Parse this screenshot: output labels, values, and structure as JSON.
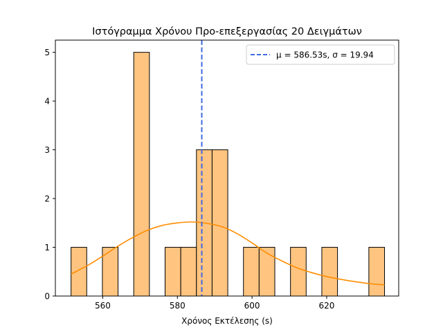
{
  "chart_data": {
    "type": "bar",
    "title": "Ιστόγραμμα Χρόνου Προ-επεξεργασίας 20 Δειγμάτων",
    "xlabel": "Χρόνος Εκτέλεσης (s)",
    "ylabel": "",
    "xlim": [
      547.3,
      639.3
    ],
    "ylim": [
      0,
      5.25
    ],
    "xticks": [
      560,
      580,
      600,
      620
    ],
    "yticks": [
      0,
      1,
      2,
      3,
      4,
      5
    ],
    "bin_width": 4.2,
    "bins": [
      {
        "x0": 551.5,
        "count": 1
      },
      {
        "x0": 555.7,
        "count": 0
      },
      {
        "x0": 559.9,
        "count": 1
      },
      {
        "x0": 564.1,
        "count": 0
      },
      {
        "x0": 568.3,
        "count": 5
      },
      {
        "x0": 572.5,
        "count": 0
      },
      {
        "x0": 576.7,
        "count": 1
      },
      {
        "x0": 580.9,
        "count": 1
      },
      {
        "x0": 585.1,
        "count": 3
      },
      {
        "x0": 589.3,
        "count": 3
      },
      {
        "x0": 593.5,
        "count": 0
      },
      {
        "x0": 597.7,
        "count": 1
      },
      {
        "x0": 601.9,
        "count": 1
      },
      {
        "x0": 606.1,
        "count": 0
      },
      {
        "x0": 610.3,
        "count": 1
      },
      {
        "x0": 614.5,
        "count": 0
      },
      {
        "x0": 618.7,
        "count": 1
      },
      {
        "x0": 622.9,
        "count": 0
      },
      {
        "x0": 627.1,
        "count": 0
      },
      {
        "x0": 631.3,
        "count": 1
      }
    ],
    "kde_curve": {
      "x": [
        551.5,
        556,
        560,
        564,
        568,
        572,
        576,
        580,
        584,
        588,
        592,
        596,
        600,
        604,
        608,
        612,
        616,
        620,
        624,
        628,
        632,
        635.5
      ],
      "y": [
        0.45,
        0.63,
        0.82,
        1.02,
        1.2,
        1.35,
        1.45,
        1.5,
        1.52,
        1.49,
        1.42,
        1.28,
        1.09,
        0.88,
        0.72,
        0.58,
        0.48,
        0.4,
        0.34,
        0.29,
        0.25,
        0.23
      ]
    },
    "mean_line": {
      "x": 586.53
    },
    "legend": {
      "placement": "top-right",
      "label": "μ = 586.53s, σ = 19.94"
    },
    "colors": {
      "bar_fill": "#ffc480",
      "bar_edge": "#000000",
      "kde": "#ff8c00",
      "mean": "#4169e1"
    },
    "grid": false
  }
}
